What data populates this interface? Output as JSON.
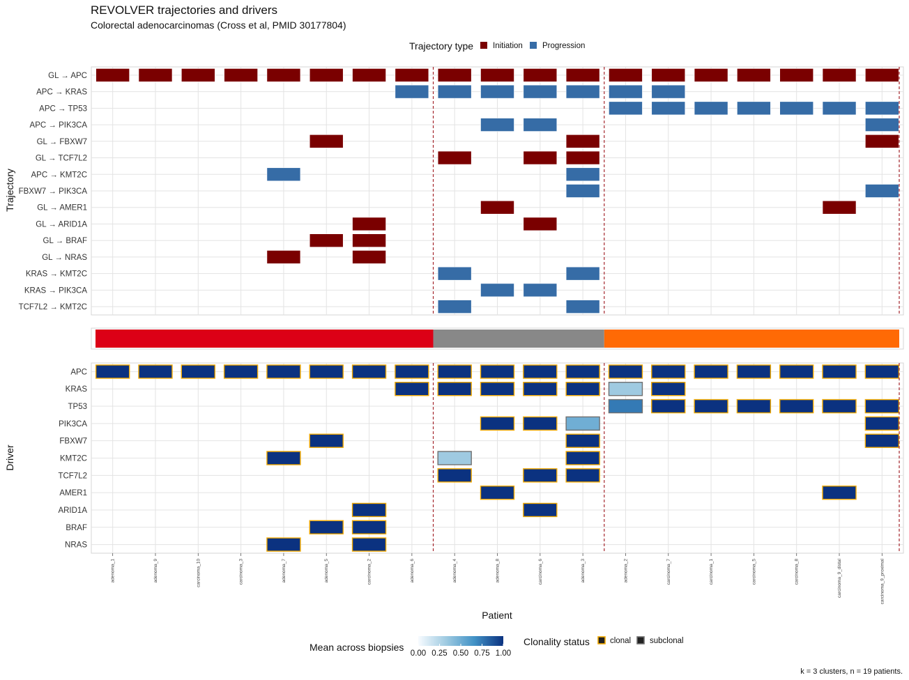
{
  "chart_data": {
    "type": "heatmap",
    "title": "REVOLVER trajectories and drivers",
    "subtitle": "Colorectal adenocarcinomas (Cross et al, PMID 30177804)",
    "caption": "k = 3 clusters, n = 19 patients.",
    "xlabel": "Patient",
    "patients": [
      "adenoma_1",
      "adenoma_9",
      "carcinoma_10",
      "carcinoma_3",
      "adenoma_7",
      "adenoma_5",
      "carcinoma_2",
      "adenoma_6",
      "adenoma_4",
      "adenoma_8",
      "carcinoma_6",
      "adenoma_3",
      "adenoma_2",
      "carcinoma_7",
      "carcinoma_1",
      "carcinoma_5",
      "carcinoma_8",
      "carcinoma_9_distal",
      "carcinoma_9_proximal"
    ],
    "clusters": [
      {
        "color": "#dc0016",
        "start": 0,
        "end": 7
      },
      {
        "color": "#888888",
        "start": 8,
        "end": 11
      },
      {
        "color": "#ff6a05",
        "start": 12,
        "end": 18
      }
    ],
    "trajectory_panel": {
      "ylabel": "Trajectory",
      "rows": [
        "GL → APC",
        "APC → KRAS",
        "APC → TP53",
        "APC → PIK3CA",
        "GL → FBXW7",
        "GL → TCF7L2",
        "APC → KMT2C",
        "FBXW7 → PIK3CA",
        "GL → AMER1",
        "GL → ARID1A",
        "GL → BRAF",
        "GL → NRAS",
        "KRAS → KMT2C",
        "KRAS → PIK3CA",
        "TCF7L2 → KMT2C"
      ],
      "cells": [
        {
          "row": 0,
          "col": 0,
          "type": "Initiation"
        },
        {
          "row": 0,
          "col": 1,
          "type": "Initiation"
        },
        {
          "row": 0,
          "col": 2,
          "type": "Initiation"
        },
        {
          "row": 0,
          "col": 3,
          "type": "Initiation"
        },
        {
          "row": 0,
          "col": 4,
          "type": "Initiation"
        },
        {
          "row": 0,
          "col": 5,
          "type": "Initiation"
        },
        {
          "row": 0,
          "col": 6,
          "type": "Initiation"
        },
        {
          "row": 0,
          "col": 7,
          "type": "Initiation"
        },
        {
          "row": 0,
          "col": 8,
          "type": "Initiation"
        },
        {
          "row": 0,
          "col": 9,
          "type": "Initiation"
        },
        {
          "row": 0,
          "col": 10,
          "type": "Initiation"
        },
        {
          "row": 0,
          "col": 11,
          "type": "Initiation"
        },
        {
          "row": 0,
          "col": 12,
          "type": "Initiation"
        },
        {
          "row": 0,
          "col": 13,
          "type": "Initiation"
        },
        {
          "row": 0,
          "col": 14,
          "type": "Initiation"
        },
        {
          "row": 0,
          "col": 15,
          "type": "Initiation"
        },
        {
          "row": 0,
          "col": 16,
          "type": "Initiation"
        },
        {
          "row": 0,
          "col": 17,
          "type": "Initiation"
        },
        {
          "row": 0,
          "col": 18,
          "type": "Initiation"
        },
        {
          "row": 1,
          "col": 7,
          "type": "Progression"
        },
        {
          "row": 1,
          "col": 8,
          "type": "Progression"
        },
        {
          "row": 1,
          "col": 9,
          "type": "Progression"
        },
        {
          "row": 1,
          "col": 10,
          "type": "Progression"
        },
        {
          "row": 1,
          "col": 11,
          "type": "Progression"
        },
        {
          "row": 1,
          "col": 12,
          "type": "Progression"
        },
        {
          "row": 1,
          "col": 13,
          "type": "Progression"
        },
        {
          "row": 2,
          "col": 12,
          "type": "Progression"
        },
        {
          "row": 2,
          "col": 13,
          "type": "Progression"
        },
        {
          "row": 2,
          "col": 14,
          "type": "Progression"
        },
        {
          "row": 2,
          "col": 15,
          "type": "Progression"
        },
        {
          "row": 2,
          "col": 16,
          "type": "Progression"
        },
        {
          "row": 2,
          "col": 17,
          "type": "Progression"
        },
        {
          "row": 2,
          "col": 18,
          "type": "Progression"
        },
        {
          "row": 3,
          "col": 9,
          "type": "Progression"
        },
        {
          "row": 3,
          "col": 10,
          "type": "Progression"
        },
        {
          "row": 3,
          "col": 18,
          "type": "Progression"
        },
        {
          "row": 4,
          "col": 5,
          "type": "Initiation"
        },
        {
          "row": 4,
          "col": 11,
          "type": "Initiation"
        },
        {
          "row": 4,
          "col": 18,
          "type": "Initiation"
        },
        {
          "row": 5,
          "col": 8,
          "type": "Initiation"
        },
        {
          "row": 5,
          "col": 10,
          "type": "Initiation"
        },
        {
          "row": 5,
          "col": 11,
          "type": "Initiation"
        },
        {
          "row": 6,
          "col": 4,
          "type": "Progression"
        },
        {
          "row": 6,
          "col": 11,
          "type": "Progression"
        },
        {
          "row": 7,
          "col": 11,
          "type": "Progression"
        },
        {
          "row": 7,
          "col": 18,
          "type": "Progression"
        },
        {
          "row": 8,
          "col": 9,
          "type": "Initiation"
        },
        {
          "row": 8,
          "col": 17,
          "type": "Initiation"
        },
        {
          "row": 9,
          "col": 6,
          "type": "Initiation"
        },
        {
          "row": 9,
          "col": 10,
          "type": "Initiation"
        },
        {
          "row": 10,
          "col": 5,
          "type": "Initiation"
        },
        {
          "row": 10,
          "col": 6,
          "type": "Initiation"
        },
        {
          "row": 11,
          "col": 4,
          "type": "Initiation"
        },
        {
          "row": 11,
          "col": 6,
          "type": "Initiation"
        },
        {
          "row": 12,
          "col": 8,
          "type": "Progression"
        },
        {
          "row": 12,
          "col": 11,
          "type": "Progression"
        },
        {
          "row": 13,
          "col": 9,
          "type": "Progression"
        },
        {
          "row": 13,
          "col": 10,
          "type": "Progression"
        },
        {
          "row": 14,
          "col": 8,
          "type": "Progression"
        },
        {
          "row": 14,
          "col": 11,
          "type": "Progression"
        }
      ]
    },
    "driver_panel": {
      "ylabel": "Driver",
      "rows": [
        "APC",
        "KRAS",
        "TP53",
        "PIK3CA",
        "FBXW7",
        "KMT2C",
        "TCF7L2",
        "AMER1",
        "ARID1A",
        "BRAF",
        "NRAS"
      ],
      "cells": [
        {
          "row": 0,
          "col": 0,
          "value": 1,
          "status": "clonal"
        },
        {
          "row": 0,
          "col": 1,
          "value": 1,
          "status": "clonal"
        },
        {
          "row": 0,
          "col": 2,
          "value": 1,
          "status": "clonal"
        },
        {
          "row": 0,
          "col": 3,
          "value": 1,
          "status": "clonal"
        },
        {
          "row": 0,
          "col": 4,
          "value": 1,
          "status": "clonal"
        },
        {
          "row": 0,
          "col": 5,
          "value": 1,
          "status": "clonal"
        },
        {
          "row": 0,
          "col": 6,
          "value": 1,
          "status": "clonal"
        },
        {
          "row": 0,
          "col": 7,
          "value": 1,
          "status": "clonal"
        },
        {
          "row": 0,
          "col": 8,
          "value": 1,
          "status": "clonal"
        },
        {
          "row": 0,
          "col": 9,
          "value": 1,
          "status": "clonal"
        },
        {
          "row": 0,
          "col": 10,
          "value": 1,
          "status": "clonal"
        },
        {
          "row": 0,
          "col": 11,
          "value": 1,
          "status": "clonal"
        },
        {
          "row": 0,
          "col": 12,
          "value": 1,
          "status": "clonal"
        },
        {
          "row": 0,
          "col": 13,
          "value": 1,
          "status": "clonal"
        },
        {
          "row": 0,
          "col": 14,
          "value": 1,
          "status": "clonal"
        },
        {
          "row": 0,
          "col": 15,
          "value": 1,
          "status": "clonal"
        },
        {
          "row": 0,
          "col": 16,
          "value": 1,
          "status": "clonal"
        },
        {
          "row": 0,
          "col": 17,
          "value": 1,
          "status": "clonal"
        },
        {
          "row": 0,
          "col": 18,
          "value": 1,
          "status": "clonal"
        },
        {
          "row": 1,
          "col": 7,
          "value": 1,
          "status": "clonal"
        },
        {
          "row": 1,
          "col": 8,
          "value": 1,
          "status": "clonal"
        },
        {
          "row": 1,
          "col": 9,
          "value": 1,
          "status": "clonal"
        },
        {
          "row": 1,
          "col": 10,
          "value": 1,
          "status": "clonal"
        },
        {
          "row": 1,
          "col": 11,
          "value": 1,
          "status": "clonal"
        },
        {
          "row": 1,
          "col": 12,
          "value": 0.33,
          "status": "subclonal"
        },
        {
          "row": 1,
          "col": 13,
          "value": 1,
          "status": "clonal"
        },
        {
          "row": 2,
          "col": 12,
          "value": 0.75,
          "status": "subclonal"
        },
        {
          "row": 2,
          "col": 13,
          "value": 1,
          "status": "clonal"
        },
        {
          "row": 2,
          "col": 14,
          "value": 1,
          "status": "clonal"
        },
        {
          "row": 2,
          "col": 15,
          "value": 1,
          "status": "clonal"
        },
        {
          "row": 2,
          "col": 16,
          "value": 1,
          "status": "clonal"
        },
        {
          "row": 2,
          "col": 17,
          "value": 1,
          "status": "clonal"
        },
        {
          "row": 2,
          "col": 18,
          "value": 1,
          "status": "clonal"
        },
        {
          "row": 3,
          "col": 9,
          "value": 1,
          "status": "clonal"
        },
        {
          "row": 3,
          "col": 10,
          "value": 1,
          "status": "clonal"
        },
        {
          "row": 3,
          "col": 11,
          "value": 0.5,
          "status": "subclonal"
        },
        {
          "row": 3,
          "col": 18,
          "value": 1,
          "status": "clonal"
        },
        {
          "row": 4,
          "col": 5,
          "value": 1,
          "status": "clonal"
        },
        {
          "row": 4,
          "col": 11,
          "value": 1,
          "status": "clonal"
        },
        {
          "row": 4,
          "col": 18,
          "value": 1,
          "status": "clonal"
        },
        {
          "row": 5,
          "col": 4,
          "value": 1,
          "status": "clonal"
        },
        {
          "row": 5,
          "col": 8,
          "value": 0.33,
          "status": "subclonal"
        },
        {
          "row": 5,
          "col": 11,
          "value": 1,
          "status": "clonal"
        },
        {
          "row": 6,
          "col": 8,
          "value": 1,
          "status": "clonal"
        },
        {
          "row": 6,
          "col": 10,
          "value": 1,
          "status": "clonal"
        },
        {
          "row": 6,
          "col": 11,
          "value": 1,
          "status": "clonal"
        },
        {
          "row": 7,
          "col": 9,
          "value": 1,
          "status": "clonal"
        },
        {
          "row": 7,
          "col": 17,
          "value": 1,
          "status": "clonal"
        },
        {
          "row": 8,
          "col": 6,
          "value": 1,
          "status": "clonal"
        },
        {
          "row": 8,
          "col": 10,
          "value": 1,
          "status": "clonal"
        },
        {
          "row": 9,
          "col": 5,
          "value": 1,
          "status": "clonal"
        },
        {
          "row": 9,
          "col": 6,
          "value": 1,
          "status": "clonal"
        },
        {
          "row": 10,
          "col": 4,
          "value": 1,
          "status": "clonal"
        },
        {
          "row": 10,
          "col": 6,
          "value": 1,
          "status": "clonal"
        }
      ]
    },
    "legend_trajectory": {
      "title": "Trajectory type",
      "items": [
        {
          "label": "Initiation",
          "color": "#7a0000"
        },
        {
          "label": "Progression",
          "color": "#366ca6"
        }
      ]
    },
    "legend_mean": {
      "title": "Mean across biopsies",
      "ticks": [
        "0.00",
        "0.25",
        "0.50",
        "0.75",
        "1.00"
      ],
      "range": [
        0,
        1
      ],
      "colors": [
        "#f7fbff",
        "#9ecae1",
        "#4292c6",
        "#0b3280"
      ]
    },
    "legend_clonality": {
      "title": "Clonality status",
      "items": [
        {
          "label": "clonal",
          "border": "#f2a900"
        },
        {
          "label": "subclonal",
          "border": "#707070"
        }
      ]
    },
    "grid": true
  }
}
